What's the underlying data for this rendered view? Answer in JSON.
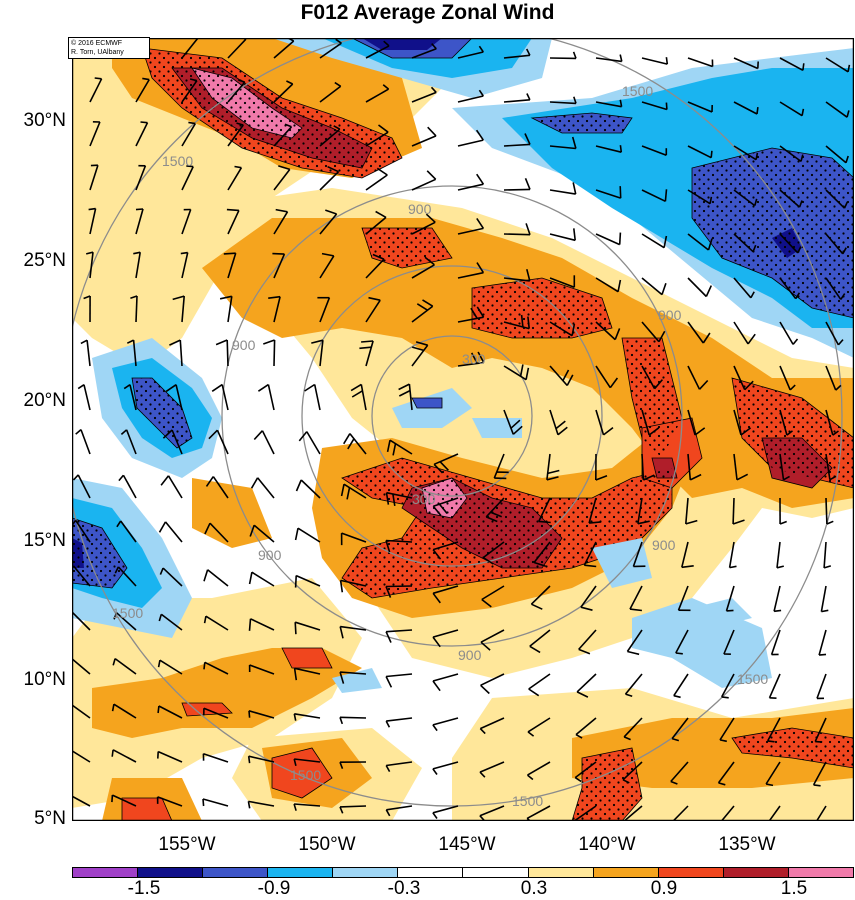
{
  "title": "F012 Average Zonal Wind",
  "credit": {
    "line1": "© 2016 ECMWF",
    "line2": "R. Torn, UAlbany"
  },
  "lat_labels": [
    "30°N",
    "25°N",
    "20°N",
    "15°N",
    "10°N",
    "5°N"
  ],
  "lon_labels": [
    "155°W",
    "150°W",
    "145°W",
    "140°W",
    "135°W"
  ],
  "colorbar": {
    "colors": [
      "#a040c8",
      "#10108a",
      "#3d55c8",
      "#1ab4f0",
      "#9fd6f5",
      "#ffffff",
      "#ffffff",
      "#ffe79a",
      "#f5a41e",
      "#f0461e",
      "#b01e2a",
      "#f07aaa"
    ],
    "labels": [
      "-1.5",
      "-0.9",
      "-0.3",
      "0.3",
      "0.9",
      "1.5"
    ]
  },
  "contour_labels": [
    "300",
    "900",
    "1500"
  ],
  "colors": {
    "contour": "#8c8c8c",
    "barb": "#000000"
  }
}
